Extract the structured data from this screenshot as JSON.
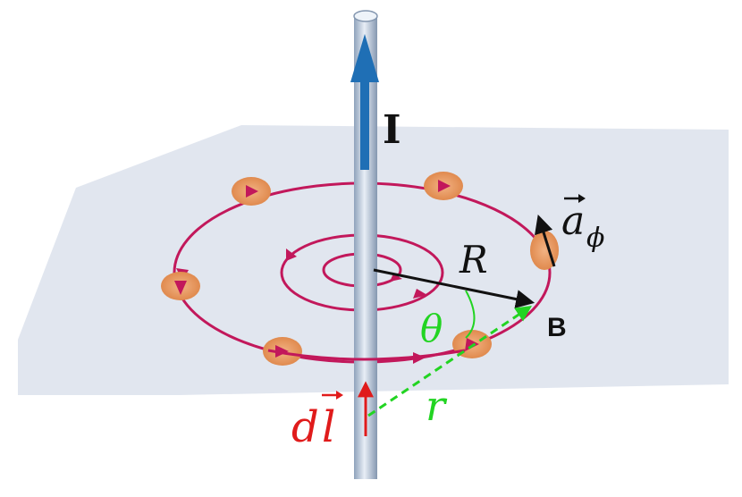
{
  "labels": {
    "current": "I",
    "field": "B",
    "radius": "R",
    "angle": "θ",
    "distance": "r",
    "element_d": "d",
    "element_l": "l",
    "unit_vector_a": "a",
    "unit_vector_sub": "ϕ"
  },
  "colors": {
    "plane": "#dde3ec",
    "field_lines": "#c2185b",
    "wire": "#b9c7d8",
    "current_arrow": "#1f6fb5",
    "charge_disc": "#f0a167",
    "element_color": "#e01b1b",
    "geometry_green": "#22d422",
    "vector_black": "#111111"
  }
}
